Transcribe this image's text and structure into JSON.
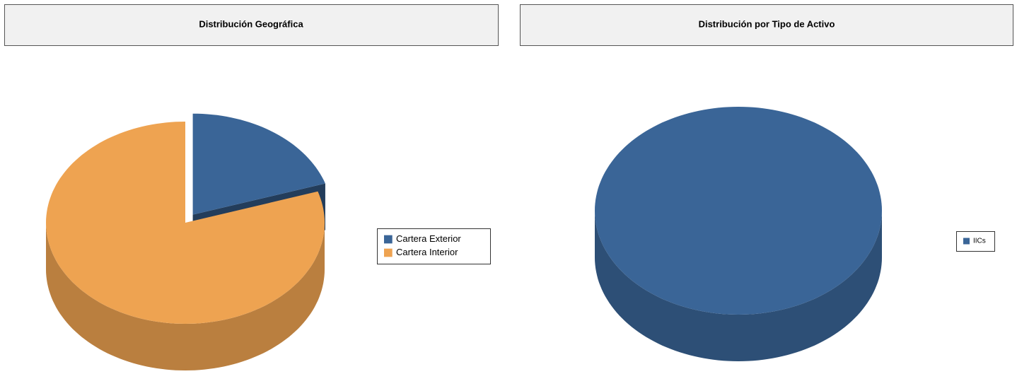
{
  "chart_data": [
    {
      "type": "pie3d",
      "title": "Distribución Geográfica",
      "categories": [
        "Cartera Exterior",
        "Cartera Interior"
      ],
      "values": [
        20,
        80
      ],
      "colors": [
        "#3a6597",
        "#eea351"
      ],
      "explode": [
        true,
        false
      ],
      "legend": "right"
    },
    {
      "type": "pie3d",
      "title": "Distribución por Tipo de Activo",
      "categories": [
        "IICs"
      ],
      "values": [
        100
      ],
      "colors": [
        "#3a6597"
      ],
      "explode": [
        false
      ],
      "legend": "right"
    }
  ]
}
